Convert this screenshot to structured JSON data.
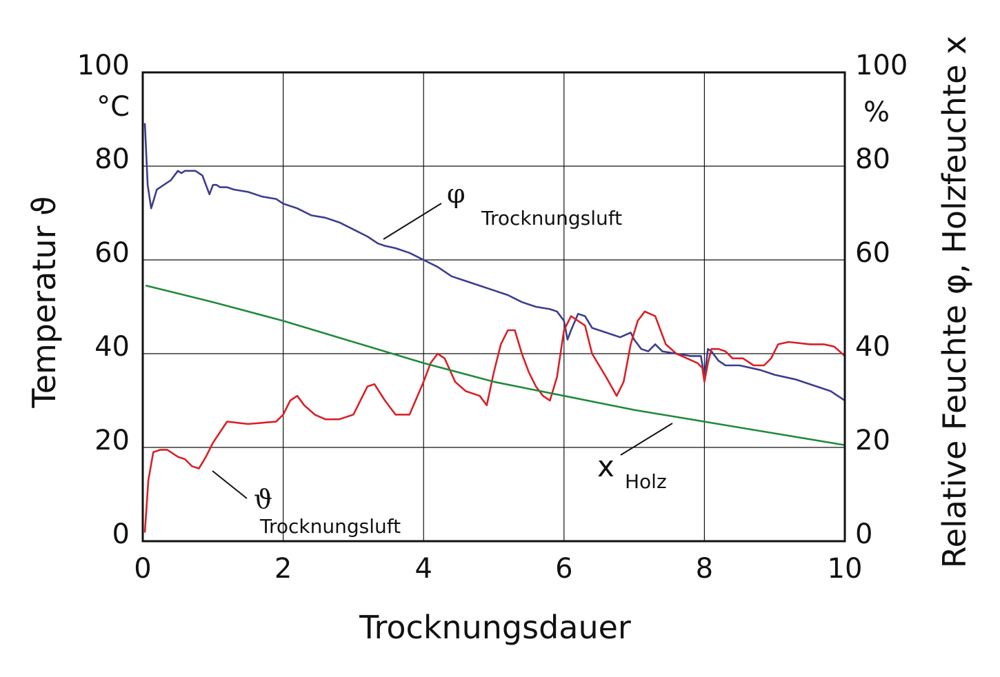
{
  "chart_data": {
    "type": "line",
    "xlabel": "Trocknungsdauer",
    "ylabel_left": "Temperatur ϑ",
    "ylabel_right": "Relative Feuchte φ, Holzfeuchte x",
    "unit_left": "°C",
    "unit_right": "%",
    "xlim": [
      0,
      10
    ],
    "ylim": [
      0,
      100
    ],
    "x_ticks": [
      "0",
      "2",
      "4",
      "6",
      "8",
      "10"
    ],
    "y_ticks_left": [
      "0",
      "20",
      "40",
      "60",
      "80",
      "100"
    ],
    "y_ticks_right": [
      "0",
      "20",
      "40",
      "60",
      "80",
      "100"
    ],
    "grid": true,
    "series": [
      {
        "color": "#3a3d8f",
        "x": [
          0.03,
          0.07,
          0.12,
          0.2,
          0.3,
          0.4,
          0.5,
          0.55,
          0.6,
          0.7,
          0.75,
          0.8,
          0.85,
          0.9,
          0.95,
          1.0,
          1.05,
          1.1,
          1.2,
          1.3,
          1.5,
          1.7,
          1.9,
          2.0,
          2.2,
          2.4,
          2.6,
          2.8,
          3.0,
          3.2,
          3.35,
          3.45,
          3.6,
          3.8,
          4.0,
          4.2,
          4.4,
          4.6,
          4.8,
          5.0,
          5.2,
          5.4,
          5.6,
          5.8,
          5.9,
          6.0,
          6.05,
          6.1,
          6.2,
          6.3,
          6.4,
          6.6,
          6.8,
          6.95,
          7.0,
          7.1,
          7.2,
          7.3,
          7.4,
          7.6,
          7.8,
          7.95,
          8.0,
          8.05,
          8.1,
          8.2,
          8.3,
          8.5,
          8.8,
          9.0,
          9.3,
          9.6,
          9.8,
          10.0
        ],
        "values": [
          89,
          76,
          71,
          75,
          76,
          77,
          79,
          78.5,
          79,
          79,
          79,
          78.5,
          78,
          76,
          74,
          76,
          76,
          75.5,
          75.5,
          75,
          74.5,
          73.5,
          73,
          72,
          71,
          69.5,
          69,
          68,
          66.5,
          65,
          63.5,
          63,
          62.5,
          61.5,
          60,
          58.5,
          56.5,
          55.5,
          54.5,
          53.5,
          52.5,
          51,
          50,
          49.5,
          49,
          47,
          43,
          45,
          48.5,
          48,
          45.5,
          44.5,
          43.5,
          44.5,
          43,
          41,
          40.5,
          42,
          40.5,
          40,
          39.5,
          39.5,
          35,
          41,
          40.5,
          38.5,
          37.5,
          37.5,
          36.5,
          35.5,
          34.5,
          33,
          32,
          30
        ]
      },
      {
        "color": "#d91f26",
        "x": [
          0.03,
          0.08,
          0.15,
          0.25,
          0.35,
          0.5,
          0.6,
          0.7,
          0.8,
          0.9,
          1.0,
          1.2,
          1.5,
          1.9,
          2.0,
          2.1,
          2.2,
          2.3,
          2.45,
          2.6,
          2.8,
          3.0,
          3.1,
          3.2,
          3.3,
          3.45,
          3.6,
          3.8,
          4.0,
          4.1,
          4.2,
          4.3,
          4.45,
          4.6,
          4.8,
          4.9,
          5.0,
          5.1,
          5.2,
          5.3,
          5.4,
          5.5,
          5.6,
          5.7,
          5.8,
          5.9,
          6.0,
          6.1,
          6.2,
          6.3,
          6.4,
          6.6,
          6.75,
          6.85,
          6.95,
          7.05,
          7.15,
          7.3,
          7.45,
          7.6,
          7.75,
          7.9,
          7.97,
          8.0,
          8.05,
          8.1,
          8.2,
          8.3,
          8.4,
          8.55,
          8.7,
          8.85,
          8.95,
          9.05,
          9.2,
          9.5,
          9.7,
          9.85,
          10.0
        ],
        "values": [
          2,
          13,
          19,
          19.5,
          19.5,
          18,
          17.5,
          16,
          15.5,
          18,
          21,
          25.5,
          25,
          25.5,
          27,
          30,
          31,
          29,
          27,
          26,
          26,
          27,
          30,
          33,
          33.5,
          30,
          27,
          27,
          34,
          38,
          40,
          39,
          34,
          32,
          31,
          29,
          36,
          42,
          45,
          45,
          40,
          36,
          33,
          31,
          30,
          35,
          45,
          48,
          47,
          46,
          40,
          35,
          31,
          34,
          42,
          47,
          49,
          48,
          42,
          40,
          39,
          38,
          37,
          34,
          38,
          41,
          41,
          40.5,
          39,
          39,
          37.5,
          37.5,
          39,
          42,
          42.5,
          42,
          42,
          41.5,
          39.5
        ]
      },
      {
        "color": "#1f8a3c",
        "x": [
          0.05,
          1.0,
          2.0,
          3.0,
          4.0,
          5.0,
          6.0,
          7.0,
          8.0,
          9.0,
          10.0
        ],
        "values": [
          54.5,
          51,
          47,
          42.5,
          38,
          34,
          31,
          28,
          25.5,
          23,
          20.5
        ]
      }
    ],
    "annotations": [
      {
        "symbol": "φ",
        "subscript": "Trocknungsluft"
      },
      {
        "symbol": "ϑ",
        "subscript": "Trocknungsluft"
      },
      {
        "symbol": "x",
        "subscript": "Holz"
      }
    ]
  }
}
